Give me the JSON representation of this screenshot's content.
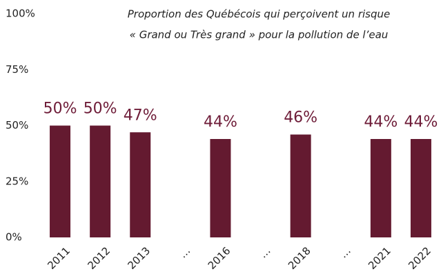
{
  "chart_data": {
    "type": "bar",
    "title": [
      "Proportion des Québécois qui perçoivent un risque",
      "« Grand ou Très grand » pour la pollution de l’eau"
    ],
    "categories": [
      "2011",
      "2012",
      "2013",
      "…",
      "2016",
      "…",
      "2018",
      "…",
      "2021",
      "2022"
    ],
    "values": [
      50,
      50,
      47,
      null,
      44,
      null,
      46,
      null,
      44,
      44
    ],
    "value_labels": [
      "50%",
      "50%",
      "47%",
      null,
      "44%",
      null,
      "46%",
      null,
      "44%",
      "44%"
    ],
    "color": "#641a30",
    "ylim": [
      0,
      100
    ],
    "yticks": [
      {
        "value": 0,
        "label": "0%"
      },
      {
        "value": 25,
        "label": "25%"
      },
      {
        "value": 50,
        "label": "50%"
      },
      {
        "value": 75,
        "label": "75%"
      },
      {
        "value": 100,
        "label": "100%"
      }
    ],
    "grid": false
  }
}
